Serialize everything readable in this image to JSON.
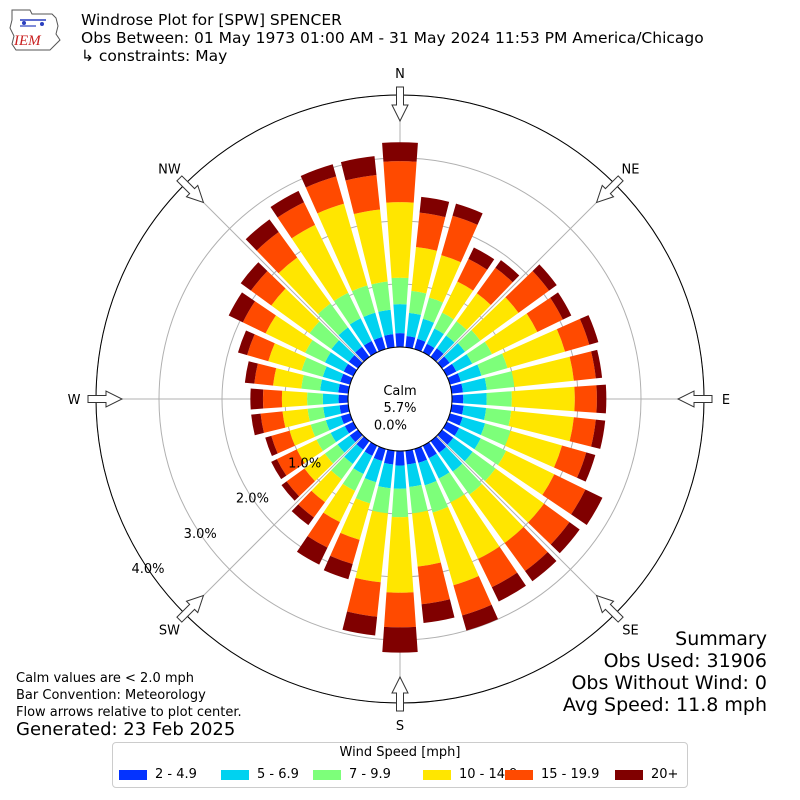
{
  "header": {
    "title": "Windrose Plot for [SPW] SPENCER",
    "obs_range": "Obs Between: 01 May 1973 01:00 AM - 31 May 2024 11:53 PM America/Chicago",
    "constraints": "↳ constraints: May"
  },
  "logo": {
    "text": "IEM",
    "icon": "iem-logo"
  },
  "footer": {
    "calm_note": "Calm values are < 2.0 mph",
    "bar_convention": "Bar Convention: Meteorology",
    "flow_note": "Flow arrows relative to plot center.",
    "generated": "Generated: 23 Feb 2025"
  },
  "summary": {
    "title": "Summary",
    "obs_used": "Obs Used: 31906",
    "obs_without_wind": "Obs Without Wind: 0",
    "avg_speed": "Avg Speed: 11.8 mph"
  },
  "calm": {
    "label": "Calm",
    "value": "5.7%"
  },
  "colors": {
    "bins": [
      "#0433ff",
      "#00d2f0",
      "#7dff7a",
      "#ffe600",
      "#ff4a00",
      "#800000"
    ],
    "grid": "#b0b0b0",
    "outline": "#000000"
  },
  "chart_data": {
    "type": "windrose",
    "legend_title": "Wind Speed [mph]",
    "legend_position": "bottom",
    "bins": [
      "2 - 4.9",
      "5 - 6.9",
      "7 - 9.9",
      "10 - 14.9",
      "15 - 19.9",
      "20+"
    ],
    "radial_ticks": [
      "0.0%",
      "1.0%",
      "2.0%",
      "3.0%",
      "4.0%"
    ],
    "radial_max": 4.0,
    "direction_labels": [
      "N",
      "NE",
      "E",
      "SE",
      "S",
      "SW",
      "W",
      "NW"
    ],
    "directions_deg": [
      0,
      10,
      20,
      30,
      40,
      50,
      60,
      70,
      80,
      90,
      100,
      110,
      120,
      130,
      140,
      150,
      160,
      170,
      180,
      190,
      200,
      210,
      220,
      230,
      240,
      250,
      260,
      270,
      280,
      290,
      300,
      310,
      320,
      330,
      340,
      350
    ],
    "cumulative": [
      [
        0.22,
        0.68,
        1.1,
        2.3,
        2.95,
        3.25
      ],
      [
        0.18,
        0.55,
        0.9,
        1.6,
        2.15,
        2.4
      ],
      [
        0.17,
        0.5,
        0.85,
        1.55,
        2.2,
        2.4
      ],
      [
        0.15,
        0.42,
        0.7,
        1.25,
        1.65,
        1.85
      ],
      [
        0.17,
        0.42,
        0.7,
        1.25,
        1.75,
        1.9
      ],
      [
        0.15,
        0.45,
        0.75,
        1.5,
        2.1,
        2.25
      ],
      [
        0.17,
        0.45,
        0.8,
        1.6,
        2.05,
        2.2
      ],
      [
        0.18,
        0.52,
        0.95,
        1.9,
        2.3,
        2.45
      ],
      [
        0.18,
        0.56,
        1.0,
        1.95,
        2.3,
        2.4
      ],
      [
        0.18,
        0.55,
        0.95,
        1.95,
        2.3,
        2.45
      ],
      [
        0.19,
        0.55,
        0.95,
        1.95,
        2.3,
        2.45
      ],
      [
        0.21,
        0.58,
        1.0,
        1.85,
        2.25,
        2.4
      ],
      [
        0.22,
        0.6,
        1.05,
        1.9,
        2.45,
        2.75
      ],
      [
        0.22,
        0.6,
        1.05,
        2.0,
        2.5,
        2.7
      ],
      [
        0.23,
        0.6,
        1.05,
        2.0,
        2.55,
        2.75
      ],
      [
        0.22,
        0.58,
        1.0,
        2.0,
        2.5,
        2.75
      ],
      [
        0.23,
        0.6,
        1.05,
        2.25,
        2.75,
        3.0
      ],
      [
        0.22,
        0.58,
        1.0,
        1.85,
        2.45,
        2.75
      ],
      [
        0.23,
        0.6,
        1.05,
        2.25,
        2.8,
        3.2
      ],
      [
        0.22,
        0.6,
        1.0,
        2.1,
        2.65,
        2.95
      ],
      [
        0.2,
        0.55,
        0.9,
        1.5,
        1.9,
        2.15
      ],
      [
        0.18,
        0.5,
        0.8,
        1.35,
        1.8,
        2.1
      ],
      [
        0.17,
        0.45,
        0.75,
        1.2,
        1.5,
        1.65
      ],
      [
        0.16,
        0.4,
        0.65,
        1.05,
        1.4,
        1.5
      ],
      [
        0.15,
        0.4,
        0.65,
        1.0,
        1.35,
        1.45
      ],
      [
        0.15,
        0.4,
        0.65,
        1.0,
        1.3,
        1.4
      ],
      [
        0.14,
        0.4,
        0.65,
        1.05,
        1.4,
        1.55
      ],
      [
        0.15,
        0.4,
        0.65,
        1.05,
        1.35,
        1.55
      ],
      [
        0.16,
        0.45,
        0.75,
        1.2,
        1.5,
        1.65
      ],
      [
        0.16,
        0.45,
        0.8,
        1.35,
        1.7,
        1.85
      ],
      [
        0.17,
        0.5,
        0.85,
        1.55,
        1.95,
        2.2
      ],
      [
        0.18,
        0.52,
        0.95,
        1.7,
        2.1,
        2.3
      ],
      [
        0.2,
        0.58,
        1.05,
        1.95,
        2.45,
        2.7
      ],
      [
        0.2,
        0.6,
        1.05,
        2.25,
        2.65,
        2.85
      ],
      [
        0.2,
        0.6,
        1.05,
        2.4,
        2.85,
        3.05
      ],
      [
        0.21,
        0.6,
        1.05,
        2.2,
        2.75,
        3.05
      ]
    ]
  }
}
